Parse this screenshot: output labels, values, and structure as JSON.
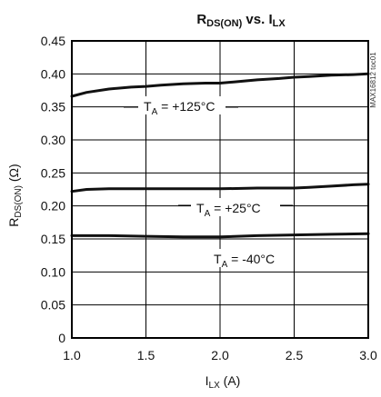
{
  "chart_data": {
    "type": "line",
    "title": {
      "main": "R",
      "main_sub": "DS(ON)",
      "middle": " vs. I",
      "end_sub": "LX"
    },
    "xlabel": {
      "main": "I",
      "sub": "LX",
      "rest": " (A)"
    },
    "ylabel": {
      "main": "R",
      "sub": "DS(ON)",
      "rest": " (Ω)"
    },
    "xlim": [
      1.0,
      3.0
    ],
    "ylim": [
      0,
      0.45
    ],
    "x_ticks": [
      1.0,
      1.5,
      2.0,
      2.5,
      3.0
    ],
    "x_tick_labels": [
      "1.0",
      "1.5",
      "2.0",
      "2.5",
      "3.0"
    ],
    "y_ticks": [
      0,
      0.05,
      0.1,
      0.15,
      0.2,
      0.25,
      0.3,
      0.35,
      0.4,
      0.45
    ],
    "y_tick_labels": [
      "0",
      "0.05",
      "0.10",
      "0.15",
      "0.20",
      "0.25",
      "0.30",
      "0.35",
      "0.40",
      "0.45"
    ],
    "grid": true,
    "series": [
      {
        "label": {
          "main": "T",
          "sub": "A",
          "rest": " = +125°C"
        },
        "x": [
          1.0,
          1.1,
          1.25,
          1.4,
          1.5,
          1.6,
          1.75,
          1.9,
          2.0,
          2.1,
          2.25,
          2.4,
          2.5,
          2.6,
          2.75,
          2.9,
          3.0
        ],
        "y": [
          0.366,
          0.372,
          0.377,
          0.38,
          0.381,
          0.383,
          0.385,
          0.386,
          0.386,
          0.388,
          0.391,
          0.393,
          0.395,
          0.396,
          0.398,
          0.399,
          0.4
        ]
      },
      {
        "label": {
          "main": "T",
          "sub": "A",
          "rest": " = +25°C"
        },
        "x": [
          1.0,
          1.1,
          1.25,
          1.5,
          1.75,
          2.0,
          2.25,
          2.5,
          2.6,
          2.75,
          2.9,
          3.0
        ],
        "y": [
          0.222,
          0.225,
          0.226,
          0.226,
          0.226,
          0.226,
          0.227,
          0.227,
          0.228,
          0.23,
          0.232,
          0.233
        ]
      },
      {
        "label": {
          "main": "T",
          "sub": "A",
          "rest": " = -40°C"
        },
        "x": [
          1.0,
          1.25,
          1.5,
          1.75,
          2.0,
          2.25,
          2.5,
          2.75,
          3.0
        ],
        "y": [
          0.155,
          0.155,
          0.154,
          0.153,
          0.153,
          0.155,
          0.156,
          0.157,
          0.158
        ]
      }
    ],
    "annotations": [
      {
        "text": "MAX16812 toc01"
      }
    ]
  }
}
